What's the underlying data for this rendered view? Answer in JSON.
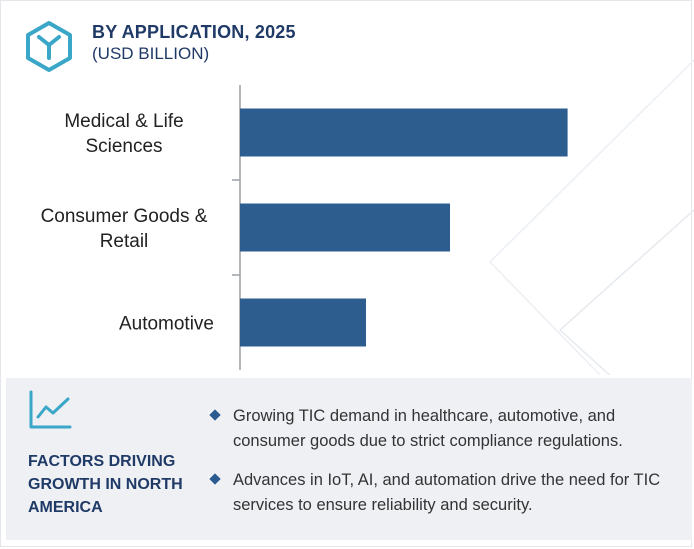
{
  "header": {
    "title": "BY APPLICATION, 2025",
    "subtitle": "(USD BILLION)",
    "logo_icon": "hexagon-y-logo-icon"
  },
  "chart_data": {
    "type": "bar",
    "orientation": "horizontal",
    "categories": [
      "Medical & Life Sciences",
      "Consumer Goods & Retail",
      "Automotive"
    ],
    "category_lines": [
      [
        "Medical & Life",
        "Sciences"
      ],
      [
        "Consumer Goods &",
        "Retail"
      ],
      [
        "Automotive"
      ]
    ],
    "values": [
      3.9,
      2.5,
      1.5
    ],
    "xlim": [
      0,
      5
    ],
    "bar_color": "#2d5d8f",
    "grid": false,
    "legend": "none",
    "xlabel": "",
    "ylabel": ""
  },
  "factors": {
    "icon": "trend-chart-icon",
    "title": "FACTORS DRIVING GROWTH IN NORTH AMERICA",
    "items": [
      "Growing TIC demand in healthcare, automotive, and consumer goods due to strict compliance regulations.",
      "Advances in IoT, AI, and automation drive the need for TIC services to ensure reliability and security."
    ]
  },
  "colors": {
    "accent": "#3aa6c8",
    "title": "#1f3a66",
    "bar": "#2d5d8f",
    "panel": "#eef0f4"
  }
}
